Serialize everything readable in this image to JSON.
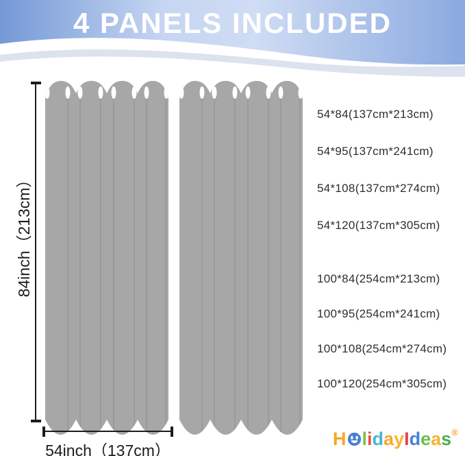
{
  "banner": {
    "title": "4 PANELS INCLUDED"
  },
  "measurements": {
    "height_label": "84inch（213cm）",
    "width_label": "54inch（137cm）"
  },
  "sizes": {
    "group1": [
      "54*84(137cm*213cm)",
      "54*95(137cm*241cm)",
      "54*108(137cm*274cm)",
      "54*120(137cm*305cm)"
    ],
    "group2": [
      "100*84(254cm*213cm)",
      "100*95(254cm*241cm)",
      "100*108(254cm*274cm)",
      "100*120(254cm*305cm)"
    ]
  },
  "logo": {
    "letters": [
      {
        "ch": "H",
        "color": "#f7a823"
      },
      {
        "ch": "o",
        "color": "#4a7fd4",
        "smiley": true
      },
      {
        "ch": "l",
        "color": "#7dc242"
      },
      {
        "ch": "i",
        "color": "#e84c3d"
      },
      {
        "ch": "d",
        "color": "#47b5d8"
      },
      {
        "ch": "a",
        "color": "#f7a823"
      },
      {
        "ch": "y",
        "color": "#f9b233"
      },
      {
        "ch": "I",
        "color": "#e8414b"
      },
      {
        "ch": "d",
        "color": "#4a7fd4"
      },
      {
        "ch": "e",
        "color": "#6abf4b"
      },
      {
        "ch": "a",
        "color": "#f9b233"
      },
      {
        "ch": "s",
        "color": "#4caf50"
      }
    ],
    "registered_mark": "®",
    "registered_color": "#f7a823"
  },
  "colors": {
    "banner_l": "#7499d6",
    "banner_ml": "#c6d5f2",
    "banner_mr": "#cfdcf4",
    "banner_r": "#8aa9e0",
    "wave": "#dce3ee",
    "banner_text": "#ffffff",
    "panel": "#a7a7a7",
    "fold": "#8d8d8d",
    "grommet": "#ffffff",
    "measure": "#1c1c1c",
    "text": "#2e2e2e"
  }
}
